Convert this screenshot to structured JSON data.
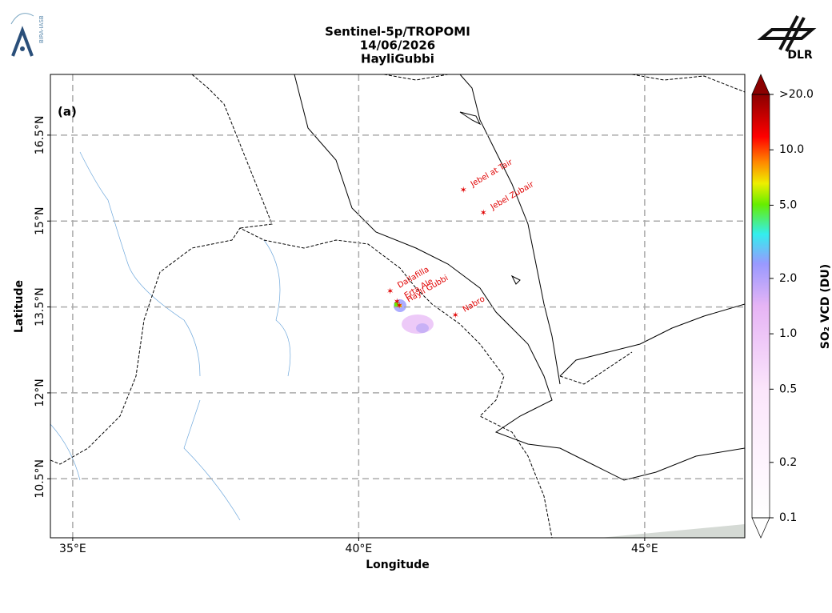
{
  "header": {
    "title_lines": [
      "Sentinel-5p/TROPOMI",
      "14/06/2026",
      "HayliGubbi"
    ],
    "left_logo": "BIRA-IASB",
    "right_logo": "DLR"
  },
  "map": {
    "panel_label": "(a)",
    "xlabel": "Longitude",
    "ylabel": "Latitude",
    "xlim": [
      34.61,
      46.75
    ],
    "ylim": [
      9.47,
      17.56
    ],
    "xticks": [
      {
        "value": 35,
        "label": "35°E"
      },
      {
        "value": 40,
        "label": "40°E"
      },
      {
        "value": 45,
        "label": "45°E"
      }
    ],
    "yticks": [
      {
        "value": 10.5,
        "label": "10.5°N"
      },
      {
        "value": 12,
        "label": "12°N"
      },
      {
        "value": 13.5,
        "label": "13.5°N"
      },
      {
        "value": 15,
        "label": "15°N"
      },
      {
        "value": 16.5,
        "label": "16.5°N"
      }
    ],
    "grid": true,
    "volcanoes": [
      {
        "name": "Jebel at Tair",
        "lon": 41.83,
        "lat": 15.55
      },
      {
        "name": "Jebel Zubair",
        "lon": 42.18,
        "lat": 15.15
      },
      {
        "name": "Dallafilla",
        "lon": 40.55,
        "lat": 13.78
      },
      {
        "name": "Erta Ale",
        "lon": 40.67,
        "lat": 13.6
      },
      {
        "name": "Hayli Gubbi",
        "lon": 40.71,
        "lat": 13.53
      },
      {
        "name": "Nabro",
        "lon": 41.69,
        "lat": 13.36
      }
    ]
  },
  "colorbar": {
    "label": "SO₂ VCD (DU)",
    "log": true,
    "lim": [
      0.1,
      20
    ],
    "ticks": [
      0.1,
      0.2,
      0.5,
      {
        "value": 1,
        "label": "1.0"
      },
      {
        "value": 2,
        "label": "2.0"
      },
      {
        "value": 5,
        "label": "5.0"
      },
      {
        "value": 10,
        "label": "10.0"
      },
      {
        "value": 20,
        "label": ">20.0"
      }
    ]
  }
}
